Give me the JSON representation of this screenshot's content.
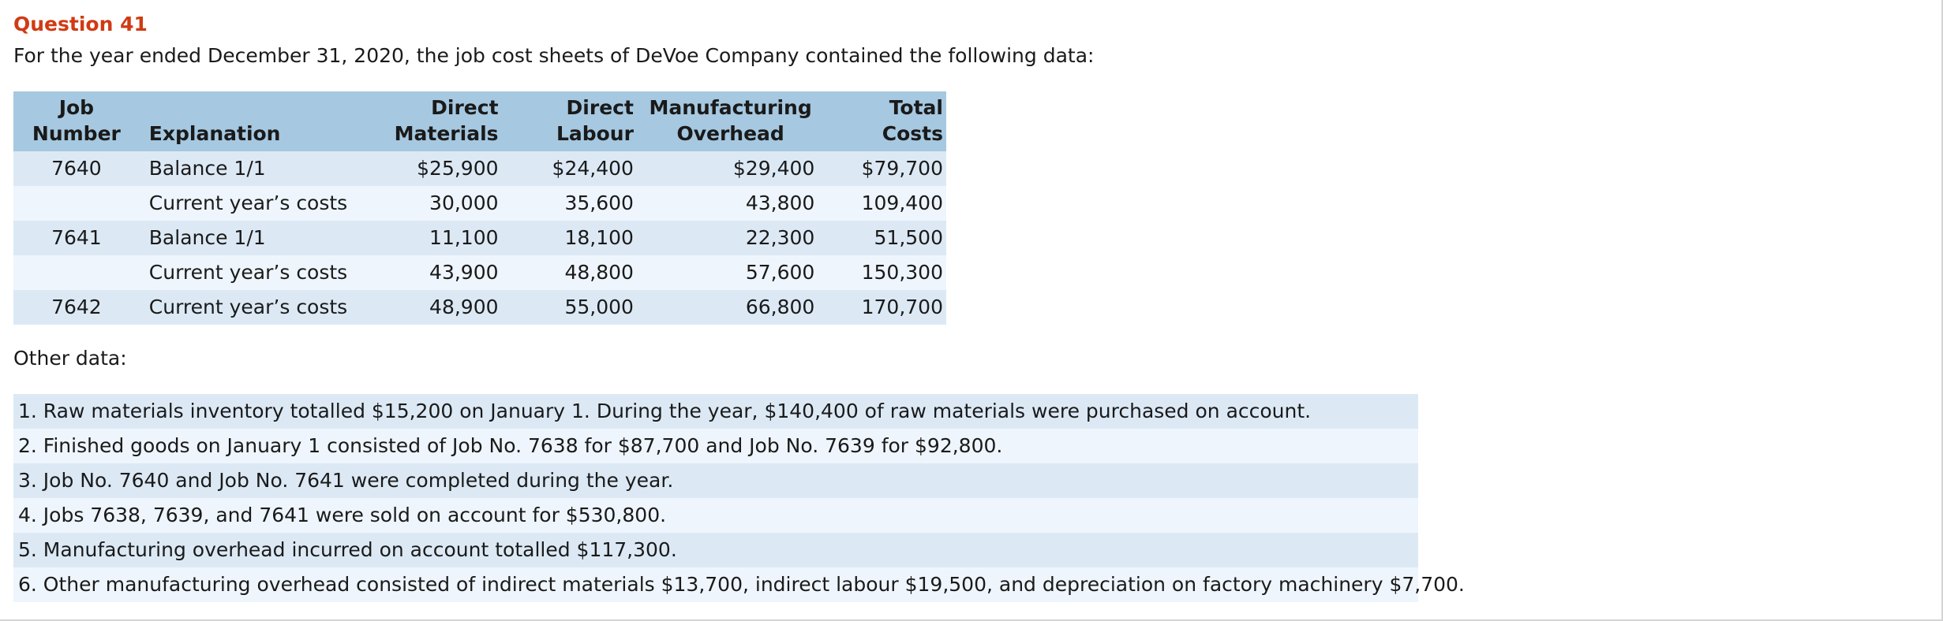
{
  "question": {
    "title": "Question 41",
    "intro": "For the year ended December 31, 2020, the job cost sheets of DeVoe Company contained the following data:"
  },
  "table": {
    "headers": {
      "job_line1": "Job",
      "job_line2": "Number",
      "explanation": "Explanation",
      "dm_line1": "Direct",
      "dm_line2": "Materials",
      "dl_line1": "Direct",
      "dl_line2": "Labour",
      "mo_line1": "Manufacturing",
      "mo_line2": "Overhead",
      "tc_line1": "Total",
      "tc_line2": "Costs"
    },
    "rows": [
      {
        "job": "7640",
        "explanation": "Balance 1/1",
        "dm": "$25,900",
        "dl": "$24,400",
        "mo": "$29,400",
        "tc": "$79,700"
      },
      {
        "job": "",
        "explanation": "Current year’s costs",
        "dm": "30,000",
        "dl": "35,600",
        "mo": "43,800",
        "tc": "109,400"
      },
      {
        "job": "7641",
        "explanation": "Balance 1/1",
        "dm": "11,100",
        "dl": "18,100",
        "mo": "22,300",
        "tc": "51,500"
      },
      {
        "job": "",
        "explanation": "Current year’s costs",
        "dm": "43,900",
        "dl": "48,800",
        "mo": "57,600",
        "tc": "150,300"
      },
      {
        "job": "7642",
        "explanation": "Current year’s costs",
        "dm": "48,900",
        "dl": "55,000",
        "mo": "66,800",
        "tc": "170,700"
      }
    ]
  },
  "other": {
    "label": "Other data:",
    "items": [
      "1. Raw materials inventory totalled $15,200 on January 1. During the year, $140,400 of raw materials were purchased on account.",
      "2. Finished goods on January 1 consisted of Job No. 7638 for $87,700 and Job No. 7639 for $92,800.",
      "3. Job No. 7640 and Job No. 7641 were completed during the year.",
      "4. Jobs 7638, 7639, and 7641 were sold on account for $530,800.",
      "5. Manufacturing overhead incurred on account totalled $117,300.",
      "6. Other manufacturing overhead consisted of indirect materials $13,700, indirect labour $19,500, and depreciation on factory machinery $7,700."
    ]
  },
  "colors": {
    "title": "#d03b14",
    "header_bg": "#a6c8e0",
    "row_shade": "#dce9f5",
    "row_light": "#eef5fc"
  }
}
